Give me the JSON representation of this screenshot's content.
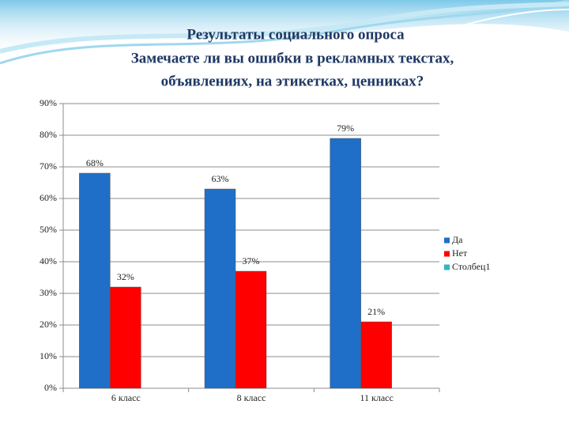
{
  "chart_data": {
    "type": "bar",
    "title": [
      "Результаты социального опроса",
      "Замечаете ли вы ошибки в рекламных текстах,",
      "объявлениях, на этикетках, ценниках?"
    ],
    "categories": [
      "6 класс",
      "8 класс",
      "11 класс"
    ],
    "series": [
      {
        "name": "Да",
        "color": "#1f6fc8",
        "values": [
          68,
          63,
          79
        ],
        "value_labels": [
          "68%",
          "63%",
          "79%"
        ]
      },
      {
        "name": "Нет",
        "color": "#ff0000",
        "values": [
          32,
          37,
          21
        ],
        "value_labels": [
          "32%",
          "37%",
          "21%"
        ]
      },
      {
        "name": "Столбец1",
        "color": "#33b5c8",
        "values": [
          null,
          null,
          null
        ]
      }
    ],
    "ylim": [
      0,
      90
    ],
    "yticks": [
      {
        "value": 0,
        "label": "0%"
      },
      {
        "value": 10,
        "label": "10%"
      },
      {
        "value": 20,
        "label": "20%"
      },
      {
        "value": 30,
        "label": "30%"
      },
      {
        "value": 40,
        "label": "40%"
      },
      {
        "value": 50,
        "label": "50%"
      },
      {
        "value": 60,
        "label": "60%"
      },
      {
        "value": 70,
        "label": "70%"
      },
      {
        "value": 80,
        "label": "80%"
      },
      {
        "value": 90,
        "label": "90%"
      }
    ],
    "grid": true,
    "legend": "right"
  }
}
